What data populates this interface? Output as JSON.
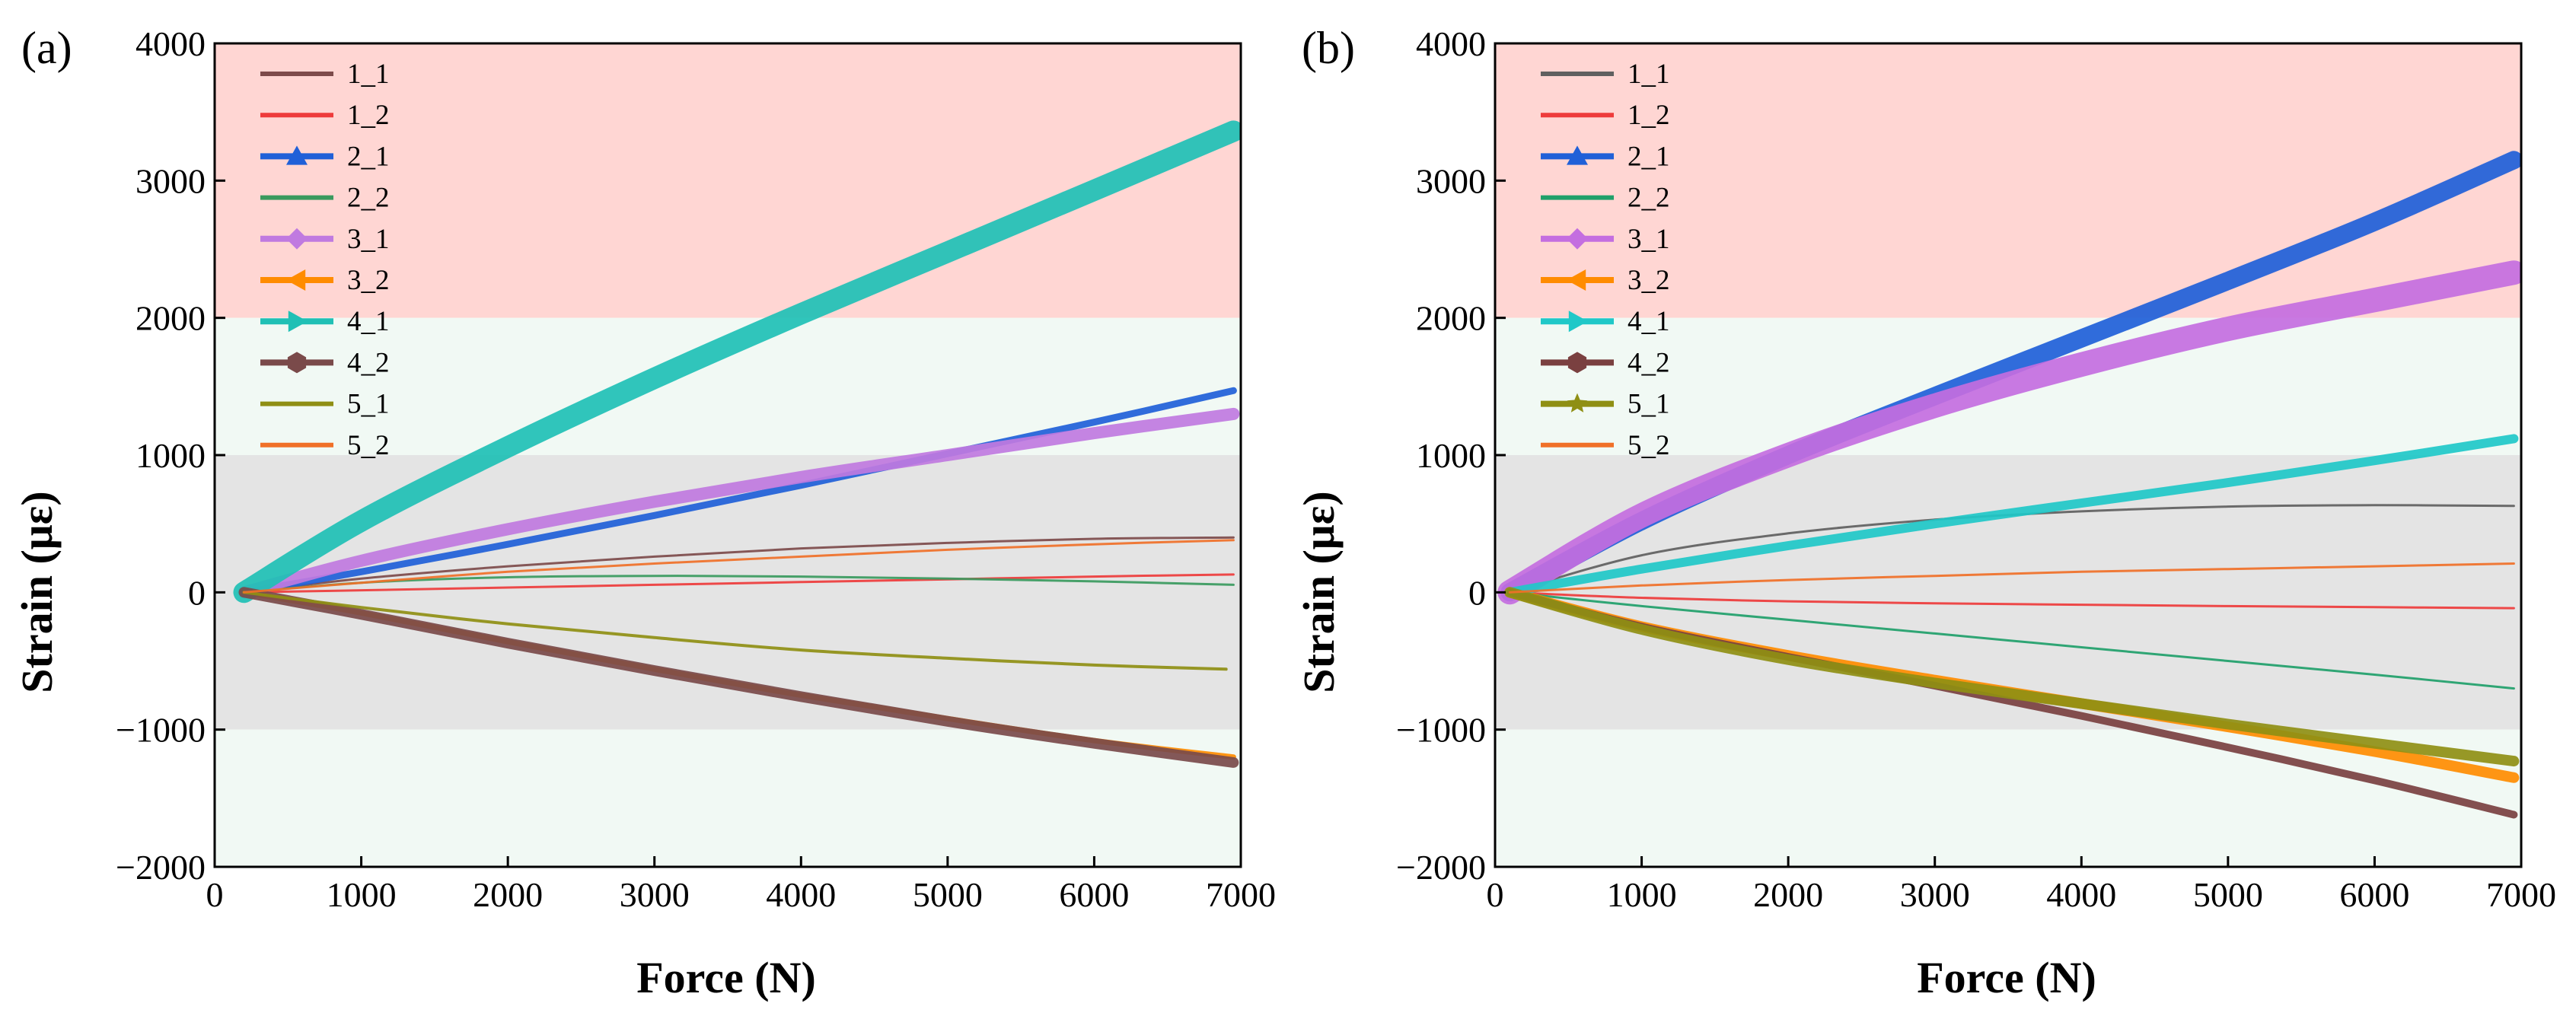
{
  "colors": {
    "band_danger": "#ffd6d3",
    "band_safe": "#f1f9f4",
    "band_neutral": "#e4e4e4",
    "frame": "#000000"
  },
  "chart_data": [
    {
      "type": "line",
      "panel_label": "(a)",
      "xlabel": "Force (N)",
      "ylabel": "Strain (με)",
      "xlim": [
        0,
        7000
      ],
      "ylim": [
        -2000,
        4000
      ],
      "xticks": [
        "0",
        "1000",
        "2000",
        "3000",
        "4000",
        "5000",
        "6000",
        "7000"
      ],
      "yticks": [
        "−2000",
        "−1000",
        "0",
        "1000",
        "2000",
        "3000",
        "4000"
      ],
      "grid": false,
      "legend_position": "top-left",
      "background_bands": [
        {
          "from": 2000,
          "to": 4000,
          "color": "#ffd6d3"
        },
        {
          "from": 1000,
          "to": 2000,
          "color": "#f1f9f4"
        },
        {
          "from": -1000,
          "to": 1000,
          "color": "#e4e4e4"
        },
        {
          "from": -2000,
          "to": -1000,
          "color": "#f1f9f4"
        }
      ],
      "series": [
        {
          "name": "1_1",
          "color": "#7d4b4b",
          "marker": "none",
          "width": 3,
          "x": [
            200,
            1000,
            2000,
            3000,
            4000,
            5000,
            6000,
            6950
          ],
          "y": [
            0,
            100,
            190,
            260,
            320,
            360,
            390,
            400
          ]
        },
        {
          "name": "1_2",
          "color": "#ee3b3b",
          "marker": "none",
          "width": 3,
          "x": [
            200,
            1000,
            2000,
            3000,
            4000,
            5000,
            6000,
            6950
          ],
          "y": [
            0,
            15,
            35,
            55,
            75,
            95,
            115,
            130
          ]
        },
        {
          "name": "2_1",
          "color": "#2060d8",
          "marker": "triangle-up",
          "width": 9,
          "x": [
            200,
            1000,
            2000,
            3000,
            4000,
            5000,
            6000,
            6950
          ],
          "y": [
            0,
            150,
            350,
            560,
            780,
            1010,
            1240,
            1470
          ]
        },
        {
          "name": "2_2",
          "color": "#3a9a5e",
          "marker": "none",
          "width": 3,
          "x": [
            200,
            1000,
            2000,
            3000,
            4000,
            5000,
            6000,
            6950
          ],
          "y": [
            0,
            70,
            110,
            120,
            115,
            100,
            80,
            55
          ]
        },
        {
          "name": "3_1",
          "color": "#c07ae0",
          "marker": "diamond",
          "width": 16,
          "x": [
            200,
            1000,
            2000,
            3000,
            4000,
            5000,
            6000,
            6950
          ],
          "y": [
            0,
            230,
            460,
            660,
            840,
            1000,
            1160,
            1300
          ]
        },
        {
          "name": "3_2",
          "color": "#ff8c00",
          "marker": "triangle-left",
          "width": 7,
          "x": [
            200,
            1000,
            2000,
            3000,
            4000,
            5000,
            6000,
            6950
          ],
          "y": [
            0,
            -150,
            -360,
            -560,
            -750,
            -920,
            -1080,
            -1200
          ]
        },
        {
          "name": "4_1",
          "color": "#20c0b5",
          "marker": "triangle-right",
          "width": 28,
          "x": [
            200,
            1000,
            2000,
            3000,
            4000,
            5000,
            6000,
            6950
          ],
          "y": [
            0,
            520,
            1060,
            1560,
            2030,
            2480,
            2930,
            3360
          ]
        },
        {
          "name": "4_2",
          "color": "#7a4a4a",
          "marker": "hexagon",
          "width": 14,
          "x": [
            200,
            1000,
            2000,
            3000,
            4000,
            5000,
            6000,
            6950
          ],
          "y": [
            0,
            -160,
            -370,
            -570,
            -760,
            -940,
            -1100,
            -1240
          ]
        },
        {
          "name": "5_1",
          "color": "#8f8f14",
          "marker": "none",
          "width": 4,
          "x": [
            200,
            1000,
            2000,
            3000,
            4000,
            5000,
            6000,
            6900
          ],
          "y": [
            0,
            -110,
            -230,
            -330,
            -420,
            -480,
            -530,
            -560
          ]
        },
        {
          "name": "5_2",
          "color": "#f07028",
          "marker": "none",
          "width": 3,
          "x": [
            200,
            1000,
            2000,
            3000,
            4000,
            5000,
            6000,
            6950
          ],
          "y": [
            0,
            70,
            150,
            210,
            260,
            310,
            350,
            380
          ]
        }
      ]
    },
    {
      "type": "line",
      "panel_label": "(b)",
      "xlabel": "Force (N)",
      "ylabel": "Strain (με)",
      "xlim": [
        0,
        7000
      ],
      "ylim": [
        -2000,
        4000
      ],
      "xticks": [
        "0",
        "1000",
        "2000",
        "3000",
        "4000",
        "5000",
        "6000",
        "7000"
      ],
      "yticks": [
        "−2000",
        "−1000",
        "0",
        "1000",
        "2000",
        "3000",
        "4000"
      ],
      "grid": false,
      "legend_position": "top-left",
      "background_bands": [
        {
          "from": 2000,
          "to": 4000,
          "color": "#ffd6d3"
        },
        {
          "from": 1000,
          "to": 2000,
          "color": "#f1f9f4"
        },
        {
          "from": -1000,
          "to": 1000,
          "color": "#e4e4e4"
        },
        {
          "from": -2000,
          "to": -1000,
          "color": "#f1f9f4"
        }
      ],
      "series": [
        {
          "name": "1_1",
          "color": "#606060",
          "marker": "none",
          "width": 3,
          "x": [
            100,
            1000,
            2000,
            3000,
            4000,
            5000,
            6000,
            6950
          ],
          "y": [
            0,
            270,
            430,
            530,
            590,
            625,
            635,
            630
          ]
        },
        {
          "name": "1_2",
          "color": "#ee3b3b",
          "marker": "none",
          "width": 3,
          "x": [
            100,
            1000,
            2000,
            3000,
            4000,
            5000,
            6000,
            6950
          ],
          "y": [
            0,
            -40,
            -65,
            -80,
            -90,
            -100,
            -108,
            -115
          ]
        },
        {
          "name": "2_1",
          "color": "#2060d8",
          "marker": "triangle-up",
          "width": 24,
          "x": [
            100,
            1000,
            2000,
            3000,
            4000,
            5000,
            6000,
            6950
          ],
          "y": [
            0,
            520,
            1000,
            1430,
            1850,
            2270,
            2700,
            3150
          ]
        },
        {
          "name": "2_2",
          "color": "#1fa06a",
          "marker": "none",
          "width": 3,
          "x": [
            100,
            1000,
            2000,
            3000,
            4000,
            5000,
            6000,
            6950
          ],
          "y": [
            0,
            -100,
            -200,
            -300,
            -400,
            -500,
            -600,
            -700
          ]
        },
        {
          "name": "3_1",
          "color": "#c46ee0",
          "marker": "diamond",
          "width": 32,
          "x": [
            100,
            1000,
            2000,
            3000,
            4000,
            5000,
            6000,
            6950
          ],
          "y": [
            0,
            560,
            1000,
            1360,
            1660,
            1920,
            2130,
            2330
          ]
        },
        {
          "name": "3_2",
          "color": "#ff8c00",
          "marker": "triangle-left",
          "width": 14,
          "x": [
            100,
            1000,
            2000,
            3000,
            4000,
            5000,
            6000,
            6950
          ],
          "y": [
            0,
            -250,
            -460,
            -640,
            -810,
            -980,
            -1160,
            -1350
          ]
        },
        {
          "name": "4_1",
          "color": "#20c8c8",
          "marker": "triangle-right",
          "width": 12,
          "x": [
            100,
            1000,
            2000,
            3000,
            4000,
            5000,
            6000,
            6950
          ],
          "y": [
            0,
            170,
            340,
            500,
            650,
            800,
            960,
            1120
          ]
        },
        {
          "name": "4_2",
          "color": "#7a4040",
          "marker": "hexagon",
          "width": 10,
          "x": [
            100,
            1000,
            2000,
            3000,
            4000,
            5000,
            6000,
            6950
          ],
          "y": [
            0,
            -250,
            -470,
            -680,
            -900,
            -1130,
            -1370,
            -1620
          ]
        },
        {
          "name": "5_1",
          "color": "#8f8f14",
          "marker": "star",
          "width": 14,
          "x": [
            100,
            1000,
            2000,
            3000,
            4000,
            5000,
            6000,
            6950
          ],
          "y": [
            0,
            -270,
            -490,
            -660,
            -810,
            -960,
            -1100,
            -1230
          ]
        },
        {
          "name": "5_2",
          "color": "#f07028",
          "marker": "none",
          "width": 3,
          "x": [
            100,
            1000,
            2000,
            3000,
            4000,
            5000,
            6000,
            6950
          ],
          "y": [
            0,
            50,
            90,
            120,
            150,
            170,
            190,
            210
          ]
        }
      ]
    }
  ]
}
